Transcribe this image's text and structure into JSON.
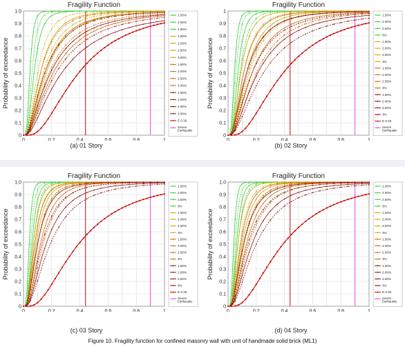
{
  "figure_caption": "Figure 10. Fragility function for confined masonry wall with unit of handmade solid brick (ML1)",
  "colors": {
    "green": "#33cc33",
    "yellow": "#c8a800",
    "orange": "#cc6600",
    "red": "#cc0000",
    "darkred": "#8a1010",
    "magenta": "#ee44ee",
    "grid": "#d8d8d8"
  },
  "panels": [
    {
      "caption": "(a) 01 Story",
      "legend_labels": [
        "1.50%",
        "2.00%",
        "2.50%",
        "1.50%",
        "2.00%",
        "2.50%",
        "3.00%",
        "1.50%",
        "2.00%",
        "2.50%",
        "3.00%",
        "1.50%",
        "2.00%",
        "2.50%",
        "3.00%",
        "E 0.30",
        "Severe Earthquake"
      ]
    },
    {
      "caption": "(b) 02 Story",
      "legend_labels": [
        "1.50%",
        "2.00%",
        "2.50%",
        "3%",
        "1.50%",
        "2.00%",
        "2.50%",
        "3%",
        "1.50%",
        "2.00%",
        "2.50%",
        "3%",
        "1.50%",
        "2.00%",
        "2.50%",
        "3%",
        "E 0.30",
        "Severe Earthquake"
      ]
    },
    {
      "caption": "(c) 03 Story",
      "legend_labels": [
        "1.50%",
        "2.00%",
        "2.50%",
        "3%",
        "1.50%",
        "2.00%",
        "2.50%",
        "3%",
        "1.50%",
        "2.00%",
        "2.50%",
        "3%",
        "1.50%",
        "2.00%",
        "2.50%",
        "3%",
        "E 0.30",
        "Severe Earthquake"
      ]
    },
    {
      "caption": "(d) 04 Story",
      "legend_labels": [
        "1.50%",
        "2.00%",
        "2.50%",
        "3%",
        "1.50%",
        "2.00%",
        "2.50%",
        "3%",
        "1.50%",
        "2.00%",
        "2.50%",
        "3%",
        "1.50%",
        "2.00%",
        "2.50%",
        "3%",
        "E 0.30",
        "Severe Earthquake"
      ]
    }
  ],
  "chart_data": [
    {
      "type": "line",
      "title": "Fragility Function",
      "xlabel": "PGA(g)",
      "ylabel": "Probability of exceedance",
      "xlim": [
        0,
        1
      ],
      "ylim": [
        0,
        1
      ],
      "xticks": [
        "0",
        "0.2",
        "0.4",
        "0.6",
        "0.8",
        "1"
      ],
      "yticks": [
        "0",
        "0.1",
        "0.2",
        "0.3",
        "0.4",
        "0.5",
        "0.6",
        "0.7",
        "0.8",
        "0.9",
        "1.0"
      ],
      "grid": true,
      "legend_placement": "right",
      "vlines": [
        {
          "x": 0.44,
          "color": "red"
        },
        {
          "x": 0.9,
          "color": "magenta"
        }
      ],
      "series": [
        {
          "name": "1.50%",
          "color": "green",
          "median": 0.045,
          "beta": 0.45
        },
        {
          "name": "2.00%",
          "color": "green",
          "median": 0.06,
          "beta": 0.5
        },
        {
          "name": "2.50%",
          "color": "green",
          "median": 0.075,
          "beta": 0.55
        },
        {
          "name": "1.50%",
          "color": "yellow",
          "median": 0.1,
          "beta": 0.65
        },
        {
          "name": "2.00%",
          "color": "yellow",
          "median": 0.12,
          "beta": 0.7
        },
        {
          "name": "2.50%",
          "color": "yellow",
          "median": 0.14,
          "beta": 0.75
        },
        {
          "name": "3.00%",
          "color": "yellow",
          "median": 0.16,
          "beta": 0.78
        },
        {
          "name": "1.50%",
          "color": "orange",
          "median": 0.12,
          "beta": 0.75
        },
        {
          "name": "2.00%",
          "color": "orange",
          "median": 0.15,
          "beta": 0.8
        },
        {
          "name": "2.50%",
          "color": "orange",
          "median": 0.18,
          "beta": 0.85
        },
        {
          "name": "3.00%",
          "color": "orange",
          "median": 0.21,
          "beta": 0.88
        },
        {
          "name": "1.50%",
          "color": "darkred",
          "median": 0.15,
          "beta": 0.85
        },
        {
          "name": "2.00%",
          "color": "darkred",
          "median": 0.19,
          "beta": 0.88
        },
        {
          "name": "2.50%",
          "color": "darkred",
          "median": 0.23,
          "beta": 0.9
        },
        {
          "name": "3.00%",
          "color": "darkred",
          "median": 0.27,
          "beta": 0.92
        },
        {
          "name": "E 0.30",
          "color": "red",
          "median": 0.39,
          "beta": 0.72,
          "markers": true
        }
      ]
    },
    {
      "type": "line",
      "title": "Fragility Function",
      "xlabel": "PGA(g)",
      "ylabel": "Probability of exceedance",
      "xlim": [
        0,
        1
      ],
      "ylim": [
        0,
        1
      ],
      "xticks": [
        "0",
        "0.2",
        "0.4",
        "0.6",
        "0.8",
        "1"
      ],
      "yticks": [
        "0",
        "0.1",
        "0.2",
        "0.3",
        "0.4",
        "0.5",
        "0.6",
        "0.7",
        "0.8",
        "0.9",
        "1"
      ],
      "grid": true,
      "legend_placement": "right",
      "vlines": [
        {
          "x": 0.44,
          "color": "red"
        },
        {
          "x": 0.9,
          "color": "magenta"
        }
      ],
      "series": [
        {
          "name": "1.50%",
          "color": "green",
          "median": 0.045,
          "beta": 0.45
        },
        {
          "name": "2.00%",
          "color": "green",
          "median": 0.055,
          "beta": 0.48
        },
        {
          "name": "2.50%",
          "color": "green",
          "median": 0.07,
          "beta": 0.52
        },
        {
          "name": "3%",
          "color": "green",
          "median": 0.085,
          "beta": 0.55
        },
        {
          "name": "1.50%",
          "color": "yellow",
          "median": 0.09,
          "beta": 0.62
        },
        {
          "name": "2.00%",
          "color": "yellow",
          "median": 0.11,
          "beta": 0.66
        },
        {
          "name": "2.50%",
          "color": "yellow",
          "median": 0.13,
          "beta": 0.7
        },
        {
          "name": "3%",
          "color": "yellow",
          "median": 0.15,
          "beta": 0.72
        },
        {
          "name": "1.50%",
          "color": "orange",
          "median": 0.11,
          "beta": 0.7
        },
        {
          "name": "2.00%",
          "color": "orange",
          "median": 0.14,
          "beta": 0.74
        },
        {
          "name": "2.50%",
          "color": "orange",
          "median": 0.17,
          "beta": 0.78
        },
        {
          "name": "3%",
          "color": "orange",
          "median": 0.2,
          "beta": 0.8
        },
        {
          "name": "1.50%",
          "color": "darkred",
          "median": 0.13,
          "beta": 0.8
        },
        {
          "name": "2.00%",
          "color": "darkred",
          "median": 0.17,
          "beta": 0.84
        },
        {
          "name": "2.50%",
          "color": "darkred",
          "median": 0.21,
          "beta": 0.86
        },
        {
          "name": "3%",
          "color": "darkred",
          "median": 0.25,
          "beta": 0.88
        },
        {
          "name": "E 0.30",
          "color": "red",
          "median": 0.39,
          "beta": 0.72,
          "markers": true
        }
      ]
    },
    {
      "type": "line",
      "title": "Fragility Function",
      "xlabel": "PGA(g)",
      "ylabel": "Probability of exceedance",
      "xlim": [
        0,
        1
      ],
      "ylim": [
        0,
        1
      ],
      "xticks": [
        "0",
        "0.2",
        "0.4",
        "0.6",
        "0.8",
        "1"
      ],
      "yticks": [
        "0",
        "0.1",
        "0.2",
        "0.3",
        "0.4",
        "0.5",
        "0.6",
        "0.7",
        "0.8",
        "0.9",
        "1.0"
      ],
      "grid": true,
      "legend_placement": "right",
      "vlines": [
        {
          "x": 0.44,
          "color": "red"
        },
        {
          "x": 0.9,
          "color": "magenta"
        }
      ],
      "series": [
        {
          "name": "1.50%",
          "color": "green",
          "median": 0.04,
          "beta": 0.42
        },
        {
          "name": "2.00%",
          "color": "green",
          "median": 0.05,
          "beta": 0.45
        },
        {
          "name": "2.50%",
          "color": "green",
          "median": 0.06,
          "beta": 0.48
        },
        {
          "name": "3%",
          "color": "green",
          "median": 0.07,
          "beta": 0.5
        },
        {
          "name": "1.50%",
          "color": "yellow",
          "median": 0.07,
          "beta": 0.55
        },
        {
          "name": "2.00%",
          "color": "yellow",
          "median": 0.08,
          "beta": 0.58
        },
        {
          "name": "2.50%",
          "color": "yellow",
          "median": 0.09,
          "beta": 0.6
        },
        {
          "name": "3%",
          "color": "yellow",
          "median": 0.1,
          "beta": 0.62
        },
        {
          "name": "1.50%",
          "color": "orange",
          "median": 0.08,
          "beta": 0.6
        },
        {
          "name": "2.00%",
          "color": "orange",
          "median": 0.1,
          "beta": 0.63
        },
        {
          "name": "2.50%",
          "color": "orange",
          "median": 0.12,
          "beta": 0.66
        },
        {
          "name": "3%",
          "color": "orange",
          "median": 0.14,
          "beta": 0.68
        },
        {
          "name": "1.50%",
          "color": "darkred",
          "median": 0.1,
          "beta": 0.68
        },
        {
          "name": "2.00%",
          "color": "darkred",
          "median": 0.13,
          "beta": 0.72
        },
        {
          "name": "2.50%",
          "color": "darkred",
          "median": 0.16,
          "beta": 0.75
        },
        {
          "name": "3%",
          "color": "darkred",
          "median": 0.19,
          "beta": 0.78
        },
        {
          "name": "E 0.30",
          "color": "red",
          "median": 0.39,
          "beta": 0.72,
          "markers": true
        }
      ]
    },
    {
      "type": "line",
      "title": "Fragility Function",
      "xlabel": "PGA(g)",
      "ylabel": "Probability of exceedance",
      "xlim": [
        0,
        1
      ],
      "ylim": [
        0,
        1
      ],
      "xticks": [
        "0",
        "0.2",
        "0.4",
        "0.6",
        "0.8",
        "1"
      ],
      "yticks": [
        "0",
        "0.1",
        "0.2",
        "0.3",
        "0.4",
        "0.5",
        "0.6",
        "0.7",
        "0.8",
        "0.9",
        "1.0"
      ],
      "grid": true,
      "legend_placement": "right",
      "vlines": [
        {
          "x": 0.44,
          "color": "red"
        },
        {
          "x": 0.9,
          "color": "magenta"
        }
      ],
      "series": [
        {
          "name": "1.50%",
          "color": "green",
          "median": 0.04,
          "beta": 0.42
        },
        {
          "name": "2.00%",
          "color": "green",
          "median": 0.05,
          "beta": 0.45
        },
        {
          "name": "2.50%",
          "color": "green",
          "median": 0.06,
          "beta": 0.48
        },
        {
          "name": "3%",
          "color": "green",
          "median": 0.07,
          "beta": 0.5
        },
        {
          "name": "1.50%",
          "color": "yellow",
          "median": 0.07,
          "beta": 0.56
        },
        {
          "name": "2.00%",
          "color": "yellow",
          "median": 0.085,
          "beta": 0.6
        },
        {
          "name": "2.50%",
          "color": "yellow",
          "median": 0.1,
          "beta": 0.63
        },
        {
          "name": "3%",
          "color": "yellow",
          "median": 0.115,
          "beta": 0.65
        },
        {
          "name": "1.50%",
          "color": "orange",
          "median": 0.09,
          "beta": 0.62
        },
        {
          "name": "2.00%",
          "color": "orange",
          "median": 0.11,
          "beta": 0.66
        },
        {
          "name": "2.50%",
          "color": "orange",
          "median": 0.13,
          "beta": 0.69
        },
        {
          "name": "3%",
          "color": "orange",
          "median": 0.15,
          "beta": 0.72
        },
        {
          "name": "1.50%",
          "color": "darkred",
          "median": 0.11,
          "beta": 0.72
        },
        {
          "name": "2.00%",
          "color": "darkred",
          "median": 0.14,
          "beta": 0.75
        },
        {
          "name": "2.50%",
          "color": "darkred",
          "median": 0.17,
          "beta": 0.78
        },
        {
          "name": "3%",
          "color": "darkred",
          "median": 0.2,
          "beta": 0.8
        },
        {
          "name": "E 0.30",
          "color": "red",
          "median": 0.39,
          "beta": 0.72,
          "markers": true
        }
      ]
    }
  ]
}
